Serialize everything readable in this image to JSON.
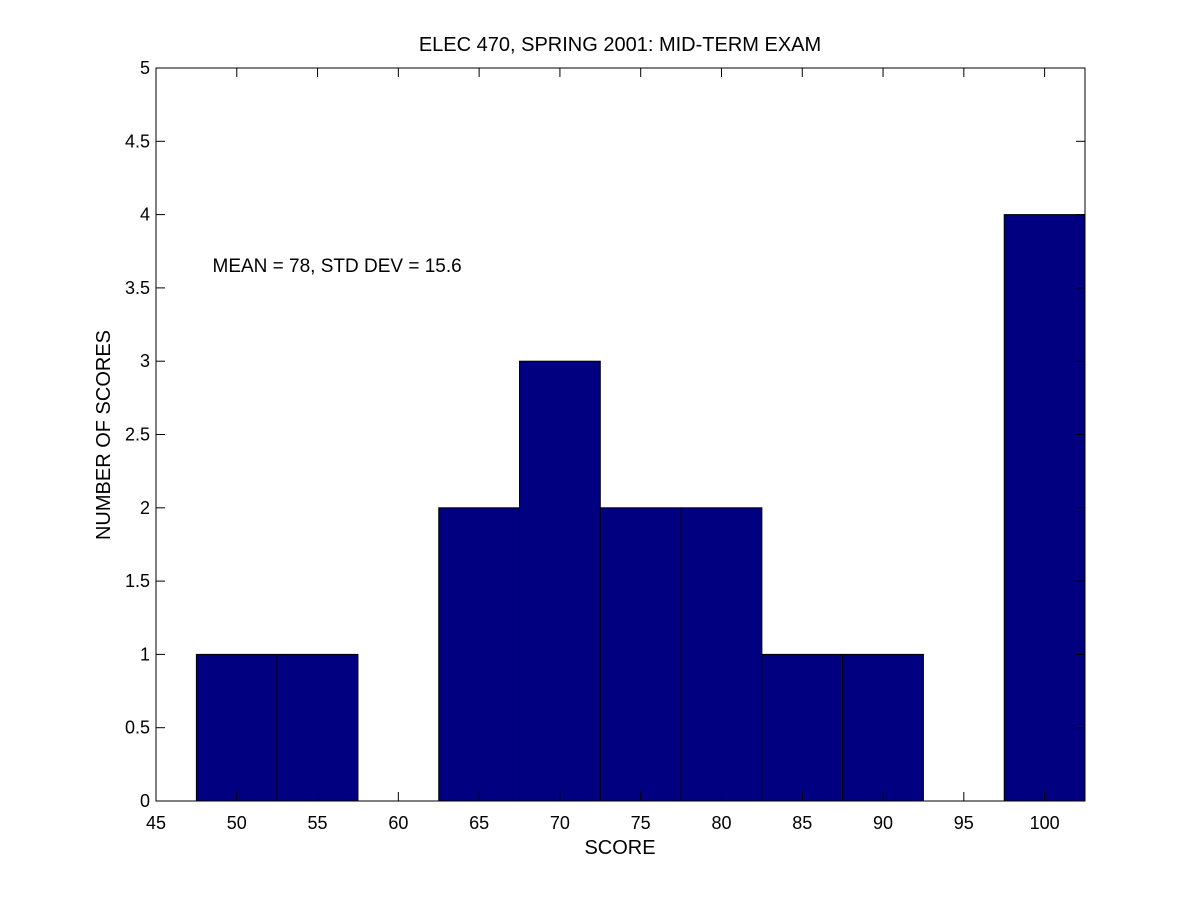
{
  "chart_data": {
    "type": "bar",
    "title": "ELEC 470, SPRING 2001: MID-TERM EXAM",
    "xlabel": "SCORE",
    "ylabel": "NUMBER OF SCORES",
    "xlim": [
      45,
      102.5
    ],
    "ylim": [
      0,
      5
    ],
    "x_ticks": [
      45,
      50,
      55,
      60,
      65,
      70,
      75,
      80,
      85,
      90,
      95,
      100
    ],
    "y_ticks": [
      0,
      0.5,
      1,
      1.5,
      2,
      2.5,
      3,
      3.5,
      4,
      4.5,
      5
    ],
    "bin_width": 5,
    "categories": [
      "50",
      "55",
      "60",
      "65",
      "70",
      "75",
      "80",
      "85",
      "90",
      "95",
      "100"
    ],
    "x": [
      50,
      55,
      60,
      65,
      70,
      75,
      80,
      85,
      90,
      95,
      100
    ],
    "values": [
      1,
      1,
      0,
      2,
      3,
      2,
      2,
      1,
      1,
      0,
      4
    ],
    "annotation": {
      "text": "MEAN = 78, STD DEV = 15.6",
      "x": 48.5,
      "y": 3.65
    },
    "grid": false,
    "legend": "none",
    "colors": {
      "bar_fill": "#000080",
      "bar_edge": "#000000",
      "axes": "#000000",
      "background": "#ffffff"
    }
  }
}
